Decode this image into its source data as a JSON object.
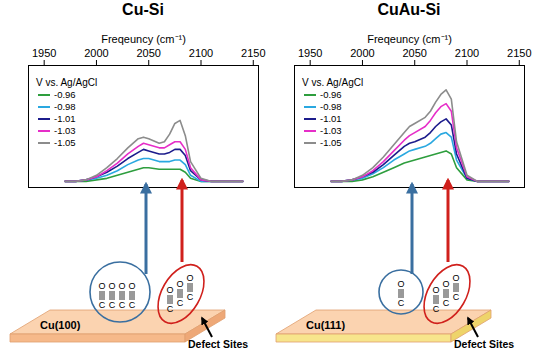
{
  "chart_data": [
    {
      "type": "line",
      "title": "Cu-Si",
      "xlabel": "Freqeuncy (cm⁻¹)",
      "legend_title": "V vs. Ag/AgCl",
      "x": [
        1970,
        1980,
        1990,
        2000,
        2010,
        2020,
        2030,
        2040,
        2045,
        2050,
        2060,
        2065,
        2070,
        2075,
        2080,
        2085,
        2090,
        2100,
        2110,
        2120,
        2140
      ],
      "series": [
        {
          "name": "-0.96",
          "color": "#2e9e3e",
          "values": [
            4,
            4,
            4,
            5,
            6,
            8,
            10,
            12,
            13,
            13,
            12,
            12,
            12,
            12,
            12,
            10,
            6,
            4,
            4,
            4,
            4
          ]
        },
        {
          "name": "-0.98",
          "color": "#2aa8e0",
          "values": [
            4,
            4,
            5,
            6,
            8,
            11,
            15,
            18,
            19,
            19,
            17,
            17,
            17,
            18,
            18,
            15,
            8,
            4,
            4,
            4,
            4
          ]
        },
        {
          "name": "-1.01",
          "color": "#1c1c8c",
          "values": [
            4,
            4,
            5,
            7,
            10,
            14,
            19,
            23,
            25,
            24,
            22,
            22,
            23,
            25,
            25,
            21,
            11,
            5,
            4,
            4,
            4
          ]
        },
        {
          "name": "-1.03",
          "color": "#e62ec8",
          "values": [
            4,
            4,
            5,
            7,
            11,
            16,
            22,
            27,
            29,
            28,
            26,
            26,
            28,
            30,
            30,
            25,
            13,
            5,
            4,
            4,
            4
          ]
        },
        {
          "name": "-1.05",
          "color": "#8c8c8c",
          "values": [
            4,
            4,
            5,
            8,
            13,
            19,
            26,
            32,
            33,
            32,
            29,
            30,
            35,
            42,
            44,
            34,
            17,
            6,
            4,
            4,
            4
          ]
        }
      ],
      "xlim": [
        1935,
        2155
      ],
      "xticks": [
        1950,
        2000,
        2050,
        2100,
        2150
      ],
      "ylim": [
        0,
        80
      ],
      "tick_labels": "x",
      "grid": false,
      "legend": "top-left"
    },
    {
      "type": "line",
      "title": "CuAu-Si",
      "xlabel": "Freqeuncy (cm⁻¹)",
      "legend_title": "V vs. Ag/AgCl",
      "x": [
        1970,
        1980,
        1990,
        2000,
        2010,
        2020,
        2030,
        2040,
        2045,
        2050,
        2060,
        2065,
        2070,
        2075,
        2080,
        2085,
        2090,
        2100,
        2110,
        2120,
        2140
      ],
      "series": [
        {
          "name": "-0.96",
          "color": "#2e9e3e",
          "values": [
            4,
            4,
            4,
            5,
            7,
            10,
            13,
            16,
            17,
            18,
            20,
            21,
            22,
            23,
            24,
            22,
            13,
            5,
            4,
            4,
            4
          ]
        },
        {
          "name": "-0.98",
          "color": "#2aa8e0",
          "values": [
            4,
            4,
            5,
            6,
            9,
            13,
            18,
            22,
            24,
            25,
            27,
            29,
            32,
            35,
            36,
            33,
            18,
            6,
            4,
            4,
            4
          ]
        },
        {
          "name": "-1.01",
          "color": "#1c1c8c",
          "values": [
            4,
            4,
            5,
            7,
            10,
            15,
            21,
            27,
            29,
            30,
            33,
            36,
            40,
            43,
            45,
            41,
            22,
            6,
            4,
            4,
            4
          ]
        },
        {
          "name": "-1.03",
          "color": "#e62ec8",
          "values": [
            4,
            4,
            5,
            7,
            11,
            17,
            24,
            31,
            34,
            36,
            40,
            44,
            49,
            53,
            55,
            50,
            26,
            7,
            4,
            4,
            4
          ]
        },
        {
          "name": "-1.05",
          "color": "#8c8c8c",
          "values": [
            4,
            4,
            5,
            8,
            13,
            20,
            28,
            36,
            40,
            42,
            46,
            50,
            56,
            61,
            64,
            58,
            30,
            8,
            4,
            4,
            4
          ]
        }
      ],
      "xlim": [
        1935,
        2155
      ],
      "xticks": [
        1950,
        2000,
        2050,
        2100,
        2150
      ],
      "ylim": [
        0,
        80
      ],
      "tick_labels": "x",
      "grid": false,
      "legend": "top-left"
    }
  ],
  "diagrams": [
    {
      "surface": "Cu(100)",
      "defect_label": "Defect Sites",
      "atoms": [
        "O",
        "C"
      ]
    },
    {
      "surface": "Cu(111)",
      "defect_label": "Defect Sites",
      "atoms": [
        "O",
        "C"
      ]
    }
  ]
}
